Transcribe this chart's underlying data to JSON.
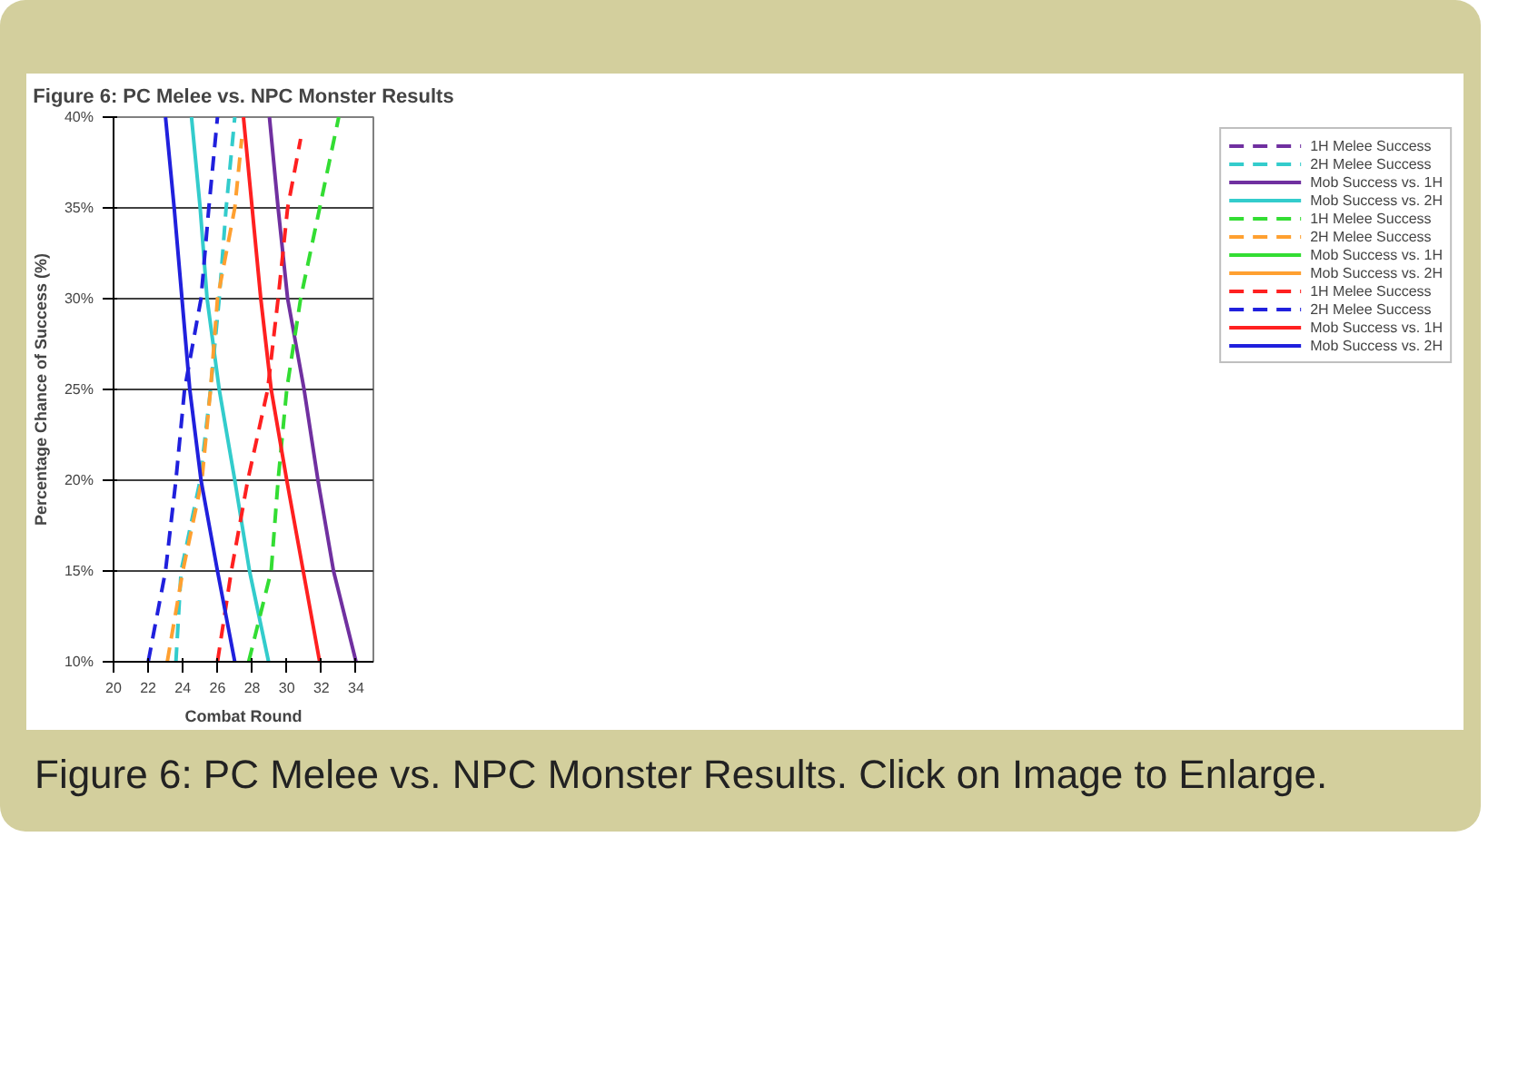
{
  "chart_data": {
    "type": "line",
    "title": "Figure 6: PC Melee vs. NPC Monster Results",
    "xlabel": "Combat Round",
    "ylabel": "Percentage Chance of Success (%)",
    "xlim": [
      20,
      35
    ],
    "xticks": [
      20,
      22,
      24,
      26,
      28,
      30,
      32,
      34
    ],
    "ylim": [
      10,
      40
    ],
    "yticks": [
      {
        "value": 10,
        "label": "10%"
      },
      {
        "value": 15,
        "label": "15%"
      },
      {
        "value": 20,
        "label": "20%"
      },
      {
        "value": 25,
        "label": "25%"
      },
      {
        "value": 30,
        "label": "30%"
      },
      {
        "value": 35,
        "label": "35%"
      },
      {
        "value": 40,
        "label": "40%"
      }
    ],
    "grid": "y",
    "legend": "right",
    "marker": "none",
    "annotations": [
      "Figure 6: PC Melee vs. NPC Monster Results. Click on Image to Enlarge."
    ],
    "series": [
      {
        "name": "1H Melee Success",
        "color": "#7030a0",
        "line_style": "dashed"
      },
      {
        "name": "2H Melee Success",
        "color": "#33cccc",
        "line_style": "dashed",
        "x": [
          23.6,
          23.9,
          25.0,
          25.6,
          26.1,
          26.5,
          27.0
        ],
        "values": [
          10,
          15,
          20,
          25,
          30,
          35,
          40
        ]
      },
      {
        "name": "Mob Success vs. 1H",
        "color": "#7030a0",
        "line_style": "solid",
        "x": [
          29.0,
          29.5,
          30.05,
          31.0,
          31.8,
          32.7,
          34.0
        ],
        "values": [
          40,
          35,
          30,
          25,
          20,
          15,
          10
        ]
      },
      {
        "name": "Mob Success vs. 2H",
        "color": "#33cccc",
        "line_style": "solid",
        "x": [
          24.5,
          25.0,
          25.4,
          26.1,
          27.0,
          27.85,
          28.95
        ],
        "values": [
          40,
          35,
          30,
          25,
          20,
          15,
          10
        ]
      },
      {
        "name": "1H Melee Success",
        "color": "#33dd33",
        "line_style": "dashed",
        "x": [
          27.8,
          29.1,
          29.5,
          30.0,
          30.8,
          31.9,
          33.0
        ],
        "values": [
          10,
          15,
          20,
          25,
          30,
          35,
          40
        ]
      },
      {
        "name": "2H Melee Success",
        "color": "#ffa030",
        "line_style": "dashed",
        "x": [
          23.1,
          24.0,
          25.1,
          25.6,
          26.0,
          27.0,
          27.4
        ],
        "values": [
          10,
          15,
          20,
          25,
          30,
          35,
          38.8
        ]
      },
      {
        "name": "Mob Success vs. 1H",
        "color": "#33dd33",
        "line_style": "solid"
      },
      {
        "name": "Mob Success vs. 2H",
        "color": "#ffa030",
        "line_style": "solid"
      },
      {
        "name": "1H Melee Success",
        "color": "#ff2020",
        "line_style": "dashed",
        "x": [
          26.0,
          26.8,
          27.75,
          28.9,
          29.5,
          30.05,
          30.8
        ],
        "values": [
          10,
          15,
          20,
          25,
          30,
          35,
          38.8
        ]
      },
      {
        "name": "2H Melee Success",
        "color": "#2020dd",
        "line_style": "dashed",
        "x": [
          22.0,
          23.0,
          23.6,
          24.1,
          25.05,
          25.5,
          26.0
        ],
        "values": [
          10,
          15,
          20,
          25,
          30,
          35,
          40
        ]
      },
      {
        "name": "Mob Success vs. 1H",
        "color": "#ff2020",
        "line_style": "solid",
        "x": [
          27.5,
          28.0,
          28.5,
          29.1,
          30.0,
          30.95,
          31.9
        ],
        "values": [
          40,
          35,
          30,
          25,
          20,
          15,
          10
        ]
      },
      {
        "name": "Mob Success vs. 2H",
        "color": "#2020dd",
        "line_style": "solid",
        "x": [
          23.0,
          23.5,
          23.95,
          24.4,
          25.05,
          26.0,
          27.0
        ],
        "values": [
          40,
          35,
          30,
          25,
          20,
          15,
          10
        ]
      }
    ]
  }
}
